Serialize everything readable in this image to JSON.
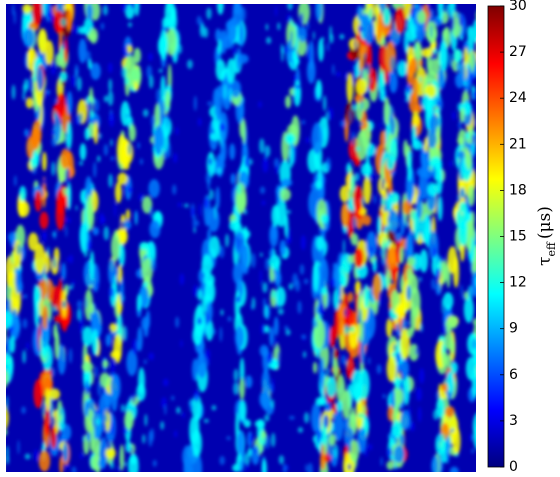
{
  "chart_data": {
    "type": "heatmap",
    "colorbar": {
      "ylim": [
        0,
        30
      ],
      "yticks": [
        0,
        3,
        6,
        9,
        12,
        15,
        18,
        21,
        24,
        27,
        30
      ],
      "colormap": [
        "#00007f",
        "#0000ff",
        "#007fff",
        "#00ffff",
        "#7fff7f",
        "#ffff00",
        "#ff7f00",
        "#ff0000",
        "#7f0000"
      ],
      "label": {
        "symbol": "τ",
        "subscript": "eff",
        "unit": "(μs)"
      }
    }
  }
}
